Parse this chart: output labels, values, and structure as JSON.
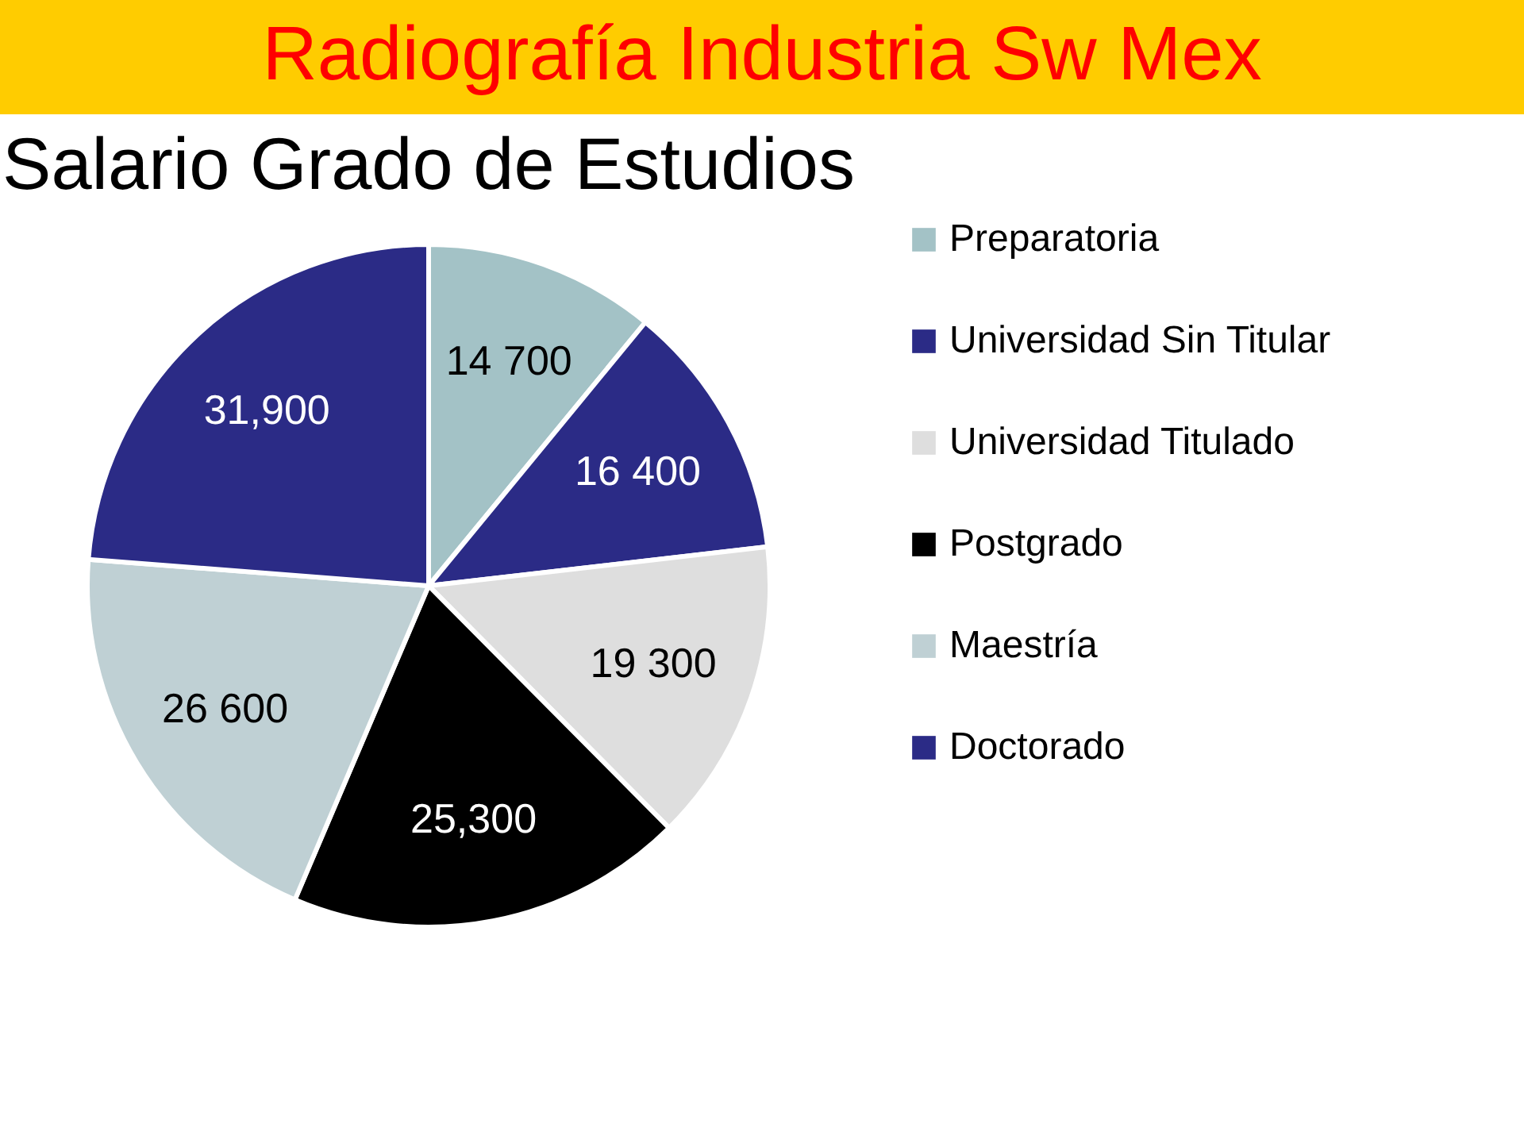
{
  "chart_data": {
    "type": "pie",
    "title": "Radiografía Industria Sw Mex",
    "subtitle": "Salario Grado de Estudios",
    "categories": [
      "Preparatoria",
      "Universidad Sin Titular",
      "Universidad Titulado",
      "Postgrado",
      "Maestría",
      "Doctorado"
    ],
    "values": [
      14700,
      16400,
      19300,
      25300,
      26600,
      31900
    ],
    "colors": [
      "#a3c2c6",
      "#2b2b86",
      "#dedede",
      "#000000",
      "#bfd0d4",
      "#2b2b86"
    ],
    "value_labels": [
      "14 700",
      "16 400",
      "19 300",
      "25,300",
      "26 600",
      "31,900"
    ],
    "legend": "right"
  }
}
